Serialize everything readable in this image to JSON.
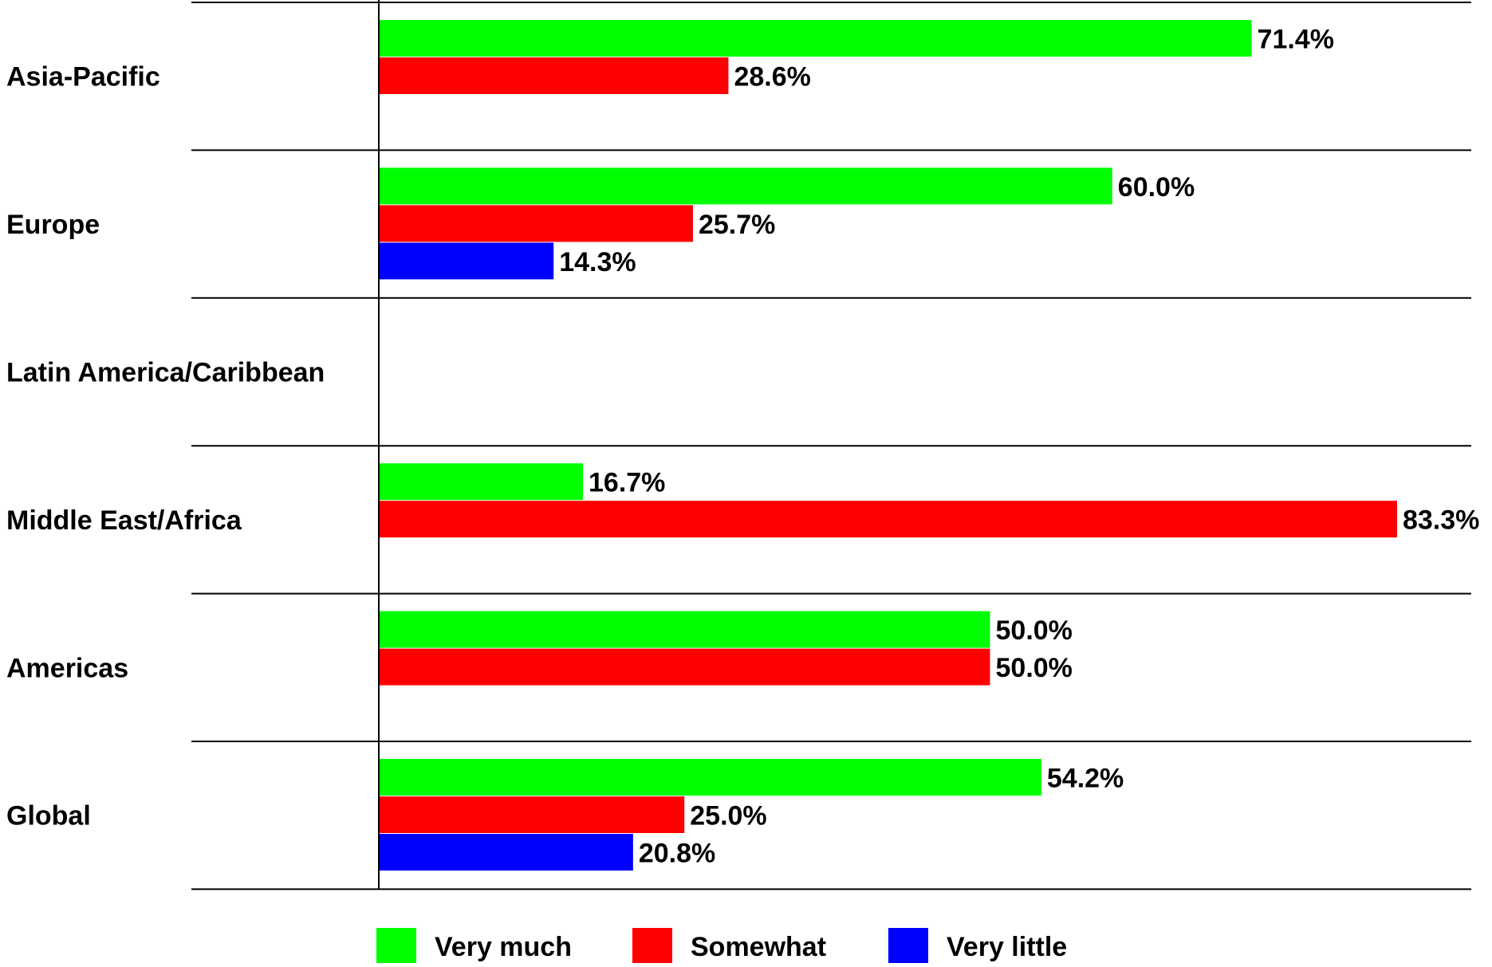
{
  "chart_data": {
    "type": "bar",
    "orientation": "horizontal",
    "categories": [
      "Asia-Pacific",
      "Europe",
      "Latin America/Caribbean",
      "Middle East/Africa",
      "Americas",
      "Global"
    ],
    "series": [
      {
        "name": "Very much",
        "color": "#00ff00",
        "values": [
          71.4,
          60.0,
          null,
          16.7,
          50.0,
          54.2
        ],
        "labels": [
          "71.4%",
          "60.0%",
          "",
          "16.7%",
          "50.0%",
          "54.2%"
        ]
      },
      {
        "name": "Somewhat",
        "color": "#ff0000",
        "values": [
          28.6,
          25.7,
          null,
          83.3,
          50.0,
          25.0
        ],
        "labels": [
          "28.6%",
          "25.7%",
          "",
          "83.3%",
          "50.0%",
          "25.0%"
        ]
      },
      {
        "name": "Very little",
        "color": "#0000ff",
        "values": [
          null,
          14.3,
          null,
          null,
          null,
          20.8
        ],
        "labels": [
          "",
          "14.3%",
          "",
          "",
          "",
          "20.8%"
        ]
      }
    ],
    "xlim": [
      0,
      100
    ],
    "grid": false,
    "legend_position": "bottom",
    "title": "",
    "xlabel": "",
    "ylabel": ""
  }
}
